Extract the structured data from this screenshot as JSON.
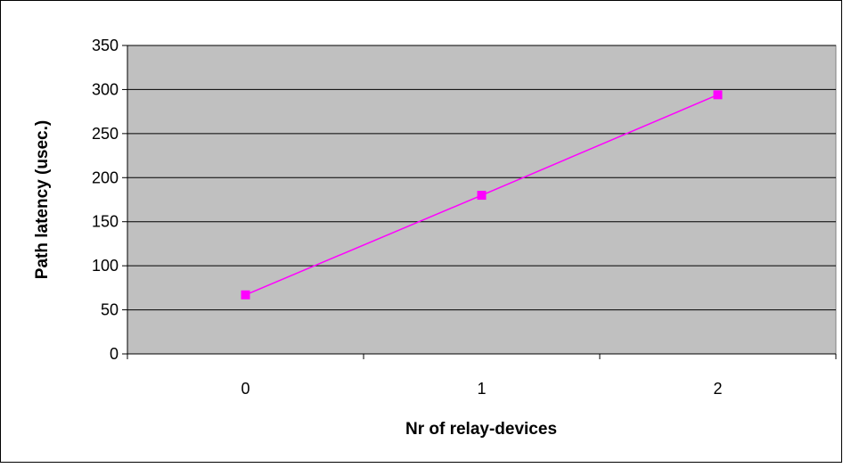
{
  "chart_data": {
    "type": "line",
    "title": "",
    "xlabel": "Nr of relay-devices",
    "ylabel": "Path latency (usec.)",
    "categories": [
      "0",
      "1",
      "2"
    ],
    "series": [
      {
        "values": [
          67,
          180,
          294
        ]
      }
    ],
    "ylim": [
      0,
      350
    ],
    "yticks": [
      "0",
      "50",
      "100",
      "150",
      "200",
      "250",
      "300",
      "350"
    ],
    "grid": true,
    "legend": "none",
    "colors": {
      "plot_background": "#c0c0c0",
      "series_line": "#ff00ff",
      "gridline": "#000000"
    }
  }
}
